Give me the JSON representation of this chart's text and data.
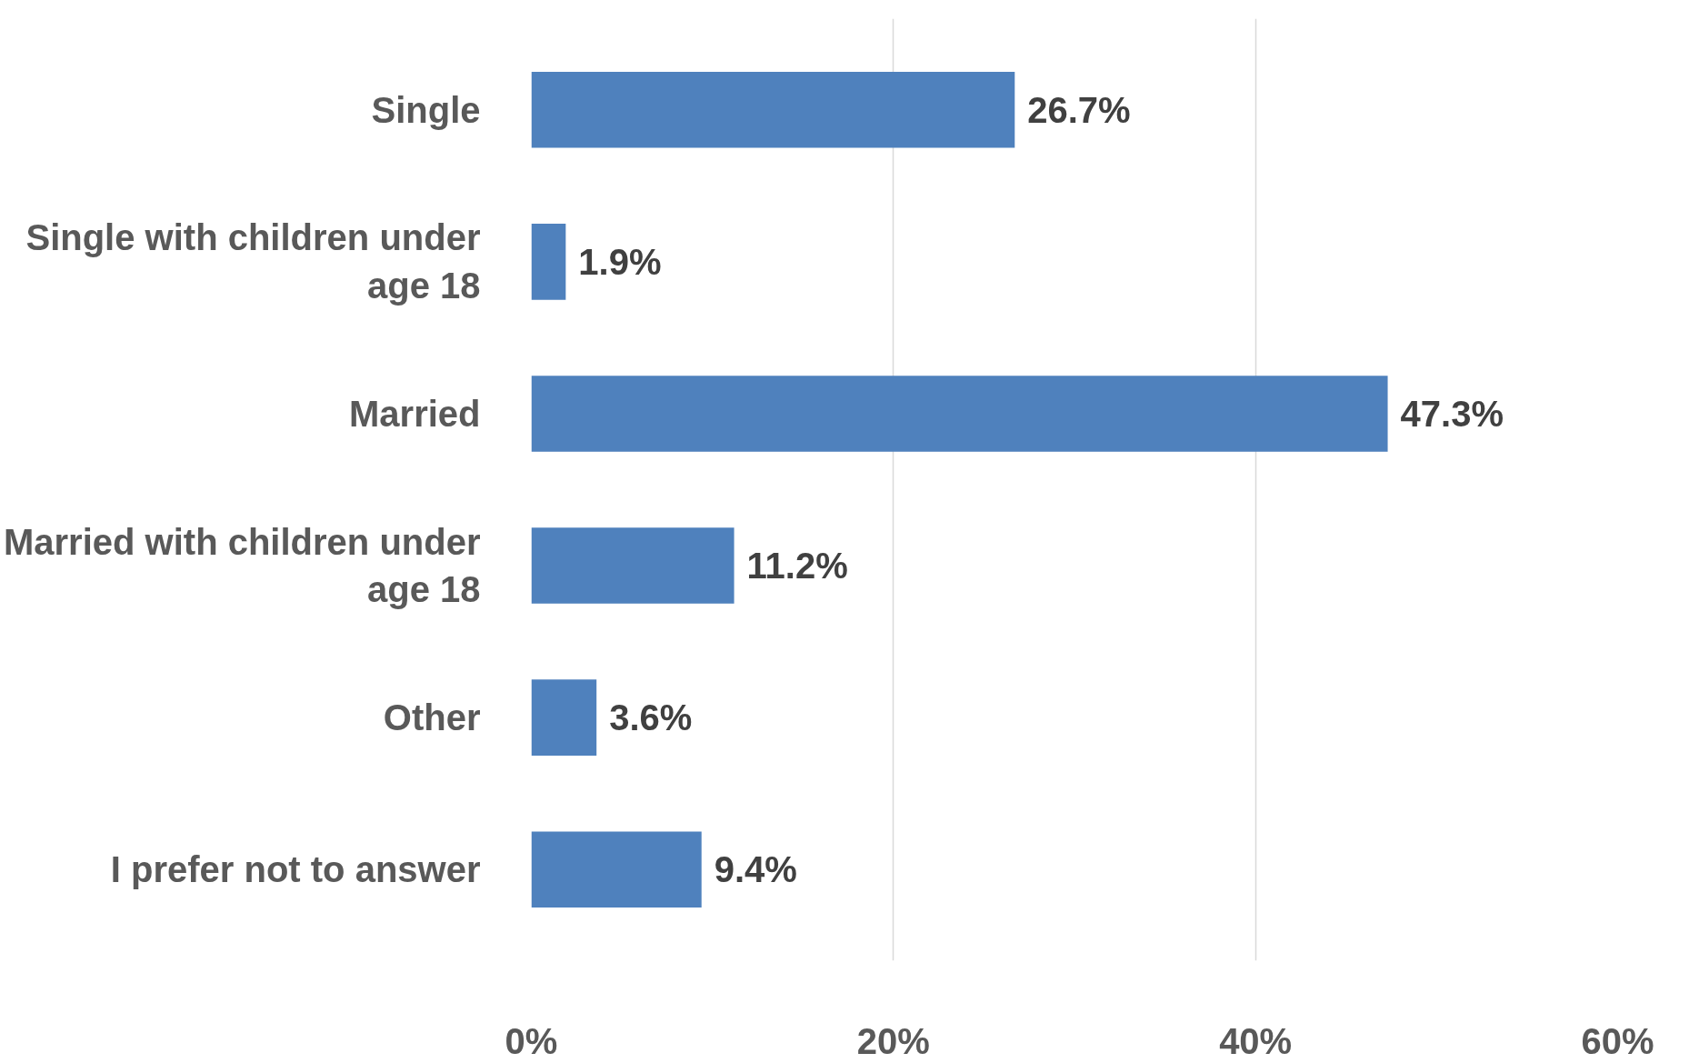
{
  "chart_data": {
    "type": "bar",
    "orientation": "horizontal",
    "categories": [
      "Single",
      "Single with children under age 18",
      "Married",
      "Married with children under age 18",
      "Other",
      "I prefer not to answer"
    ],
    "values": [
      26.7,
      1.9,
      47.3,
      11.2,
      3.6,
      9.4
    ],
    "value_labels": [
      "26.7%",
      "1.9%",
      "47.3%",
      "11.2%",
      "3.6%",
      "9.4%"
    ],
    "color": "#4f81bd",
    "xlim": [
      0,
      60
    ],
    "xticks": [
      {
        "value": 0,
        "label": "0%"
      },
      {
        "value": 20,
        "label": "20%"
      },
      {
        "value": 40,
        "label": "40%"
      },
      {
        "value": 60,
        "label": "60%"
      }
    ],
    "grid": "x"
  }
}
